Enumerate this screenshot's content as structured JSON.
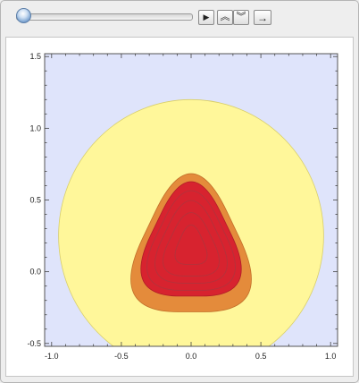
{
  "controls": {
    "play_icon": "play-icon",
    "faster_icon": "double-chevron-up-icon",
    "slower_icon": "double-chevron-down-icon",
    "direction_icon": "arrow-right-icon",
    "play_glyph": "▶",
    "faster_glyph": "︽",
    "slower_glyph": "︾",
    "direction_glyph": "→",
    "slider_position": 0.0
  },
  "colors": {
    "background": "#dfe4fb",
    "level_1": "#fff79a",
    "level_2": "#e48b3b",
    "level_3": "#d7232f",
    "contour_line": "#b4323b"
  },
  "chart_data": {
    "type": "contour",
    "title": "",
    "xlabel": "",
    "ylabel": "",
    "xlim": [
      -1.05,
      1.05
    ],
    "ylim": [
      -0.52,
      1.52
    ],
    "x_ticks": [
      "-1.0",
      "-0.5",
      "0.0",
      "0.5",
      "1.0"
    ],
    "y_ticks": [
      "-0.5",
      "0.0",
      "0.5",
      "1.0",
      "1.5"
    ],
    "x_tick_values": [
      -1.0,
      -0.5,
      0.0,
      0.5,
      1.0
    ],
    "y_tick_values": [
      -0.5,
      0.0,
      0.5,
      1.0,
      1.5
    ],
    "regions": [
      {
        "level": 1,
        "shape": "circle",
        "center": [
          0.0,
          0.25
        ],
        "radius": 0.95
      },
      {
        "level": 2,
        "shape": "rounded-triangle",
        "top": [
          0.0,
          0.94
        ],
        "bottom_left": [
          -0.6,
          -0.28
        ],
        "bottom_right": [
          0.6,
          -0.28
        ]
      },
      {
        "level": 3,
        "shape": "rounded-triangle",
        "top": [
          0.0,
          0.84
        ],
        "bottom_left": [
          -0.5,
          -0.17
        ],
        "bottom_right": [
          0.5,
          -0.17
        ]
      }
    ],
    "inner_contours": [
      {
        "top": [
          0.0,
          0.75
        ],
        "half_width": 0.44,
        "bottom": -0.13
      },
      {
        "top": [
          0.0,
          0.65
        ],
        "half_width": 0.36,
        "bottom": -0.08
      },
      {
        "top": [
          0.0,
          0.53
        ],
        "half_width": 0.28,
        "bottom": -0.03
      },
      {
        "top": [
          0.0,
          0.4
        ],
        "half_width": 0.16,
        "bottom": 0.05
      }
    ]
  }
}
